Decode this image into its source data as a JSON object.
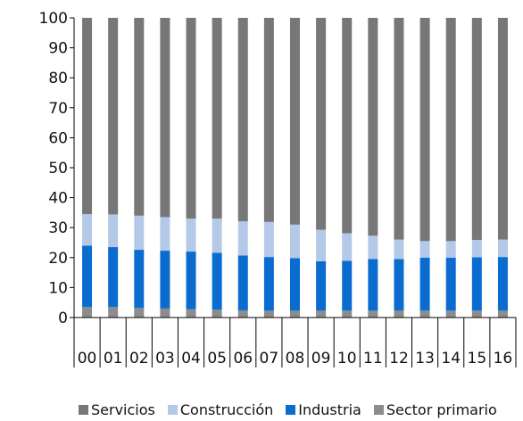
{
  "chart_data": {
    "type": "bar",
    "stacked": true,
    "categories": [
      "00",
      "01",
      "02",
      "03",
      "04",
      "05",
      "06",
      "07",
      "08",
      "09",
      "10",
      "11",
      "12",
      "13",
      "14",
      "15",
      "16"
    ],
    "series": [
      {
        "name": "Sector primario",
        "color": "#8c8c8c",
        "values": [
          3.5,
          3.5,
          3.2,
          3.0,
          2.8,
          2.6,
          2.4,
          2.3,
          2.3,
          2.3,
          2.3,
          2.3,
          2.3,
          2.3,
          2.3,
          2.3,
          2.3
        ]
      },
      {
        "name": "Industria",
        "color": "#0a6ccf",
        "values": [
          20.5,
          20.0,
          19.4,
          19.3,
          19.2,
          19.0,
          18.3,
          17.9,
          17.5,
          16.5,
          16.6,
          17.2,
          17.2,
          17.7,
          17.7,
          17.8,
          17.9
        ]
      },
      {
        "name": "Construcción",
        "color": "#b4c9e8",
        "values": [
          10.5,
          10.9,
          11.4,
          11.2,
          11.0,
          11.4,
          11.4,
          11.7,
          11.2,
          10.5,
          9.2,
          7.8,
          6.5,
          5.5,
          5.5,
          5.8,
          5.8
        ]
      },
      {
        "name": "Servicios",
        "color": "#777777",
        "values": [
          65.5,
          65.6,
          66.0,
          66.5,
          67.0,
          67.0,
          67.9,
          68.1,
          69.0,
          70.7,
          71.9,
          72.7,
          74.0,
          74.5,
          74.5,
          74.1,
          74.0
        ]
      }
    ],
    "legend_order": [
      "Servicios",
      "Construcción",
      "Industria",
      "Sector primario"
    ],
    "ylim": [
      0,
      100
    ],
    "yticks": [
      0,
      10,
      20,
      30,
      40,
      50,
      60,
      70,
      80,
      90,
      100
    ],
    "ytick_labels": [
      "0",
      "10",
      "20",
      "30",
      "40",
      "50",
      "60",
      "70",
      "80",
      "90",
      "100"
    ],
    "legend_position": "bottom",
    "grid": false
  }
}
